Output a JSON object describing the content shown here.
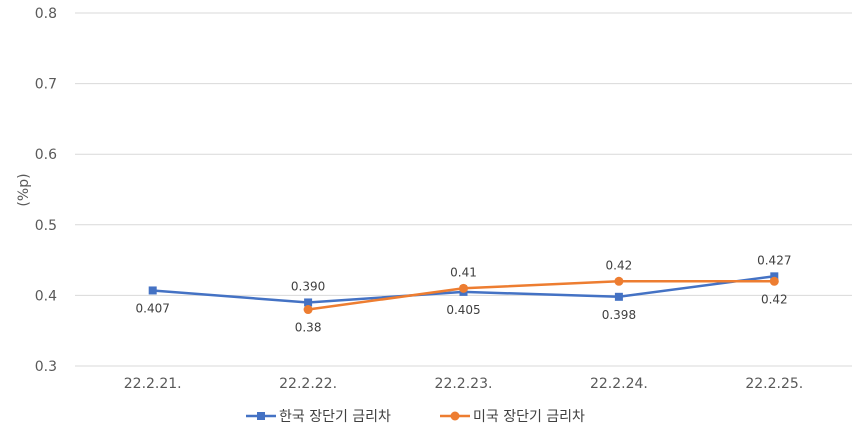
{
  "chart_data": {
    "type": "line",
    "title": "",
    "xlabel": "",
    "ylabel": "(%p)",
    "ylim": [
      0.3,
      0.8
    ],
    "yticks": [
      "0.3",
      "0.4",
      "0.5",
      "0.6",
      "0.7",
      "0.8"
    ],
    "grid": true,
    "legend_position": "bottom",
    "categories": [
      "22.2.21.",
      "22.2.22.",
      "22.2.23.",
      "22.2.24.",
      "22.2.25."
    ],
    "series": [
      {
        "name": "한국 장단기 금리차",
        "color": "#4472C4",
        "marker": "square",
        "values": [
          0.407,
          0.39,
          0.405,
          0.398,
          0.427
        ],
        "labels": [
          "0.407",
          "0.390",
          "0.405",
          "0.398",
          "0.427"
        ],
        "label_position": [
          "below",
          "above",
          "below",
          "below",
          "above"
        ]
      },
      {
        "name": "미국 장단기 금리차",
        "color": "#ED7D31",
        "marker": "circle",
        "values": [
          null,
          0.38,
          0.41,
          0.42,
          0.42
        ],
        "labels": [
          null,
          "0.38",
          "0.41",
          "0.42",
          "0.42"
        ],
        "label_position": [
          null,
          "below",
          "above",
          "above",
          "below"
        ]
      }
    ]
  }
}
